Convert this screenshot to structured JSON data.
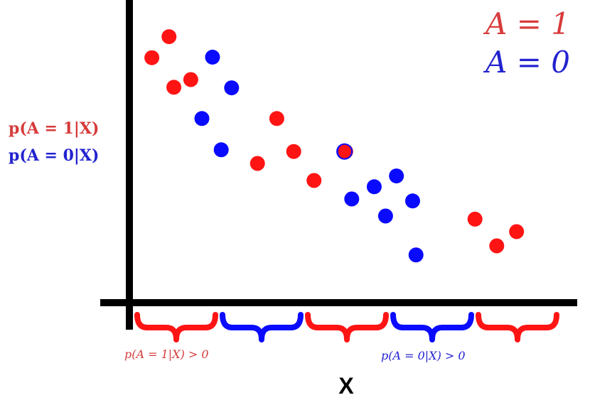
{
  "legend": {
    "a1": "A = 1",
    "a0": "A = 0"
  },
  "y_labels": {
    "a1": "p(A = 1|X)",
    "a0": "p(A = 0|X)"
  },
  "bottom_labels": {
    "left": "p(A = 1|X) > 0",
    "right": "p(A = 0|X) > 0"
  },
  "x_label": "X",
  "colors": {
    "a1": "#ff1414",
    "a1_text": "#d73b3b",
    "a0": "#0a0aff",
    "a0_text": "#2323d0",
    "axis": "#000000"
  },
  "brace_groups": [
    "A = 1",
    "A = 0",
    "A = 1",
    "A = 0",
    "A = 1"
  ],
  "chart_data": {
    "type": "scatter",
    "xlabel": "X",
    "ylabel": "",
    "series": [
      {
        "name": "A = 1",
        "points": [
          [
            0.93,
            0.862
          ],
          [
            1.64,
            0.936
          ],
          [
            1.84,
            0.758
          ],
          [
            2.54,
            0.785
          ],
          [
            6.1,
            0.648
          ],
          [
            5.3,
            0.49
          ],
          [
            6.8,
            0.532
          ],
          [
            7.64,
            0.43
          ],
          [
            8.95,
            0.532
          ],
          [
            14.3,
            0.294
          ],
          [
            15.2,
            0.2
          ],
          [
            16.02,
            0.25
          ]
        ]
      },
      {
        "name": "A = 0",
        "points": [
          [
            3.44,
            0.864
          ],
          [
            4.23,
            0.756
          ],
          [
            3.0,
            0.648
          ],
          [
            3.8,
            0.538
          ],
          [
            8.9,
            0.532
          ],
          [
            9.2,
            0.365
          ],
          [
            10.13,
            0.408
          ],
          [
            10.6,
            0.305
          ],
          [
            11.05,
            0.446
          ],
          [
            11.72,
            0.358
          ],
          [
            11.86,
            0.168
          ]
        ]
      }
    ]
  }
}
